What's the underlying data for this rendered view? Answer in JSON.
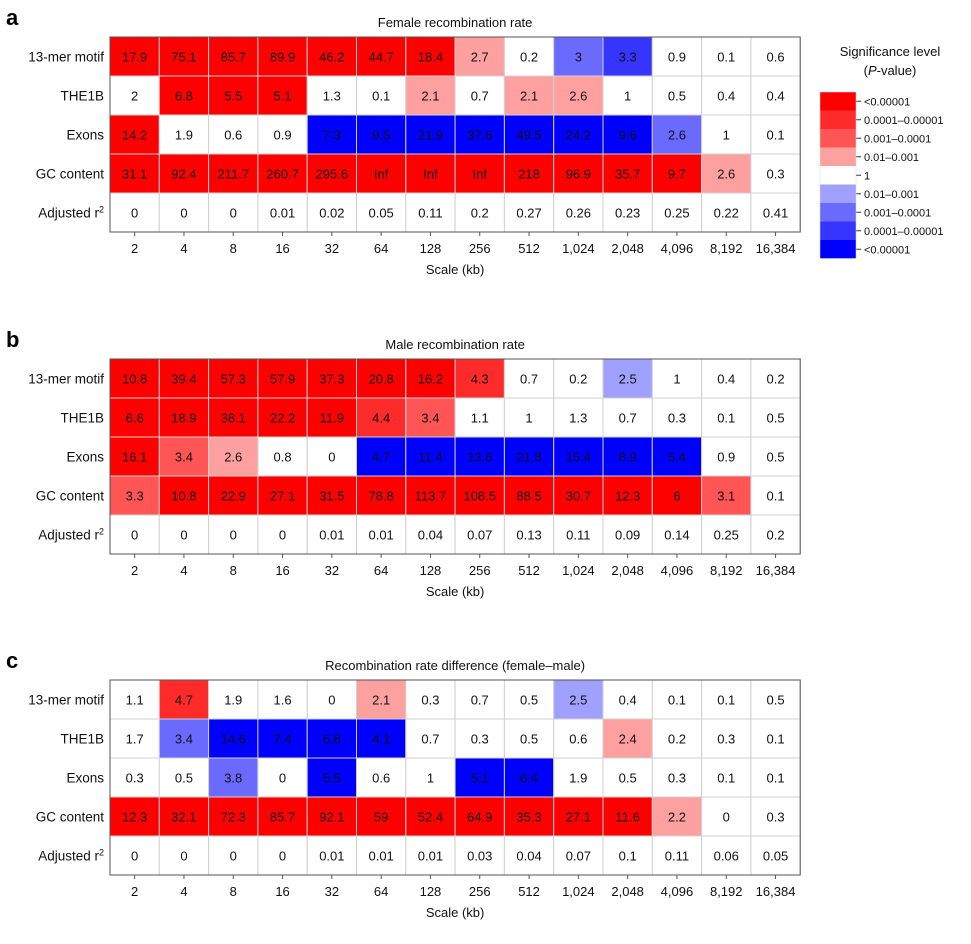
{
  "figure": {
    "legend": {
      "title_line1": "Significance level",
      "title_line2_prefix": "(",
      "title_line2_italic": "P",
      "title_line2_suffix": "-value)",
      "bins": [
        {
          "key": "r5",
          "label": "<0.00001",
          "color": "#ff0000"
        },
        {
          "key": "r4",
          "label": "0.0001–0.00001",
          "color": "#ff2a2a"
        },
        {
          "key": "r3",
          "label": "0.001–0.0001",
          "color": "#ff5555"
        },
        {
          "key": "r2",
          "label": "0.01–0.001",
          "color": "#ffa0a0"
        },
        {
          "key": "w",
          "label": "1",
          "color": "#ffffff"
        },
        {
          "key": "b2",
          "label": "0.01–0.001",
          "color": "#a0a0ff"
        },
        {
          "key": "b3",
          "label": "0.001–0.0001",
          "color": "#6a6aff"
        },
        {
          "key": "b4",
          "label": "0.0001–0.00001",
          "color": "#3535ff"
        },
        {
          "key": "b5",
          "label": "<0.00001",
          "color": "#0000ff"
        }
      ]
    }
  },
  "chart_data": [
    {
      "type": "heatmap",
      "panel": "a",
      "title": "Female recombination rate",
      "xlabel": "Scale (kb)",
      "x": [
        "2",
        "4",
        "8",
        "16",
        "32",
        "64",
        "128",
        "256",
        "512",
        "1,024",
        "2,048",
        "4,096",
        "8,192",
        "16,384"
      ],
      "rows": [
        {
          "label": "13-mer motif",
          "values": [
            "17.9",
            "75.1",
            "85.7",
            "89.9",
            "46.2",
            "44.7",
            "18.4",
            "2.7",
            "0.2",
            "3",
            "3.3",
            "0.9",
            "0.1",
            "0.6"
          ],
          "sig": [
            "r5",
            "r5",
            "r5",
            "r5",
            "r5",
            "r5",
            "r5",
            "r2",
            "w",
            "b3",
            "b4",
            "w",
            "w",
            "w"
          ]
        },
        {
          "label": "THE1B",
          "values": [
            "2",
            "6.8",
            "5.5",
            "5.1",
            "1.3",
            "0.1",
            "2.1",
            "0.7",
            "2.1",
            "2.6",
            "1",
            "0.5",
            "0.4",
            "0.4"
          ],
          "sig": [
            "w",
            "r5",
            "r5",
            "r5",
            "w",
            "w",
            "r2",
            "w",
            "r2",
            "r2",
            "w",
            "w",
            "w",
            "w"
          ]
        },
        {
          "label": "Exons",
          "values": [
            "14.2",
            "1.9",
            "0.6",
            "0.9",
            "7.3",
            "9.5",
            "21.9",
            "37.6",
            "49.5",
            "24.2",
            "9.6",
            "2.6",
            "1",
            "0.1"
          ],
          "sig": [
            "r5",
            "w",
            "w",
            "w",
            "b5",
            "b5",
            "b5",
            "b5",
            "b5",
            "b5",
            "b5",
            "b3",
            "w",
            "w"
          ]
        },
        {
          "label": "GC content",
          "values": [
            "31.1",
            "92.4",
            "211.7",
            "260.7",
            "295.6",
            "Inf",
            "Inf",
            "Inf",
            "218",
            "96.9",
            "35.7",
            "9.7",
            "2.6",
            "0.3"
          ],
          "sig": [
            "r5",
            "r5",
            "r5",
            "r5",
            "r5",
            "r5",
            "r5",
            "r5",
            "r5",
            "r5",
            "r5",
            "r5",
            "r2",
            "w"
          ]
        },
        {
          "label": "Adjusted r",
          "sup": "2",
          "values": [
            "0",
            "0",
            "0",
            "0.01",
            "0.02",
            "0.05",
            "0.11",
            "0.2",
            "0.27",
            "0.26",
            "0.23",
            "0.25",
            "0.22",
            "0.41"
          ],
          "sig": [
            "w",
            "w",
            "w",
            "w",
            "w",
            "w",
            "w",
            "w",
            "w",
            "w",
            "w",
            "w",
            "w",
            "w"
          ]
        }
      ]
    },
    {
      "type": "heatmap",
      "panel": "b",
      "title": "Male recombination rate",
      "xlabel": "Scale (kb)",
      "x": [
        "2",
        "4",
        "8",
        "16",
        "32",
        "64",
        "128",
        "256",
        "512",
        "1,024",
        "2,048",
        "4,096",
        "8,192",
        "16,384"
      ],
      "rows": [
        {
          "label": "13-mer motif",
          "values": [
            "10.8",
            "39.4",
            "57.3",
            "57.9",
            "37.3",
            "20.8",
            "16.2",
            "4.3",
            "0.7",
            "0.2",
            "2.5",
            "1",
            "0.4",
            "0.2"
          ],
          "sig": [
            "r5",
            "r5",
            "r5",
            "r5",
            "r5",
            "r5",
            "r5",
            "r4",
            "w",
            "w",
            "b2",
            "w",
            "w",
            "w"
          ]
        },
        {
          "label": "THE1B",
          "values": [
            "6.6",
            "18.9",
            "38.1",
            "22.2",
            "11.9",
            "4.4",
            "3.4",
            "1.1",
            "1",
            "1.3",
            "0.7",
            "0.3",
            "0.1",
            "0.5"
          ],
          "sig": [
            "r5",
            "r5",
            "r5",
            "r5",
            "r5",
            "r4",
            "r3",
            "w",
            "w",
            "w",
            "w",
            "w",
            "w",
            "w"
          ]
        },
        {
          "label": "Exons",
          "values": [
            "16.1",
            "3.4",
            "2.6",
            "0.8",
            "0",
            "4.7",
            "11.4",
            "13.6",
            "21.8",
            "15.4",
            "8.9",
            "5.4",
            "0.9",
            "0.5"
          ],
          "sig": [
            "r5",
            "r3",
            "r2",
            "w",
            "w",
            "b5",
            "b5",
            "b5",
            "b5",
            "b5",
            "b5",
            "b5",
            "w",
            "w"
          ]
        },
        {
          "label": "GC content",
          "values": [
            "3.3",
            "10.8",
            "22.9",
            "27.1",
            "31.5",
            "78.8",
            "113.7",
            "108.5",
            "88.5",
            "30.7",
            "12.3",
            "6",
            "3.1",
            "0.1"
          ],
          "sig": [
            "r3",
            "r5",
            "r5",
            "r5",
            "r5",
            "r5",
            "r5",
            "r5",
            "r5",
            "r5",
            "r5",
            "r5",
            "r3",
            "w"
          ]
        },
        {
          "label": "Adjusted r",
          "sup": "2",
          "values": [
            "0",
            "0",
            "0",
            "0",
            "0.01",
            "0.01",
            "0.04",
            "0.07",
            "0.13",
            "0.11",
            "0.09",
            "0.14",
            "0.25",
            "0.2"
          ],
          "sig": [
            "w",
            "w",
            "w",
            "w",
            "w",
            "w",
            "w",
            "w",
            "w",
            "w",
            "w",
            "w",
            "w",
            "w"
          ]
        }
      ]
    },
    {
      "type": "heatmap",
      "panel": "c",
      "title": "Recombination rate difference (female–male)",
      "xlabel": "Scale (kb)",
      "x": [
        "2",
        "4",
        "8",
        "16",
        "32",
        "64",
        "128",
        "256",
        "512",
        "1,024",
        "2,048",
        "4,096",
        "8,192",
        "16,384"
      ],
      "rows": [
        {
          "label": "13-mer motif",
          "values": [
            "1.1",
            "4.7",
            "1.9",
            "1.6",
            "0",
            "2.1",
            "0.3",
            "0.7",
            "0.5",
            "2.5",
            "0.4",
            "0.1",
            "0.1",
            "0.5"
          ],
          "sig": [
            "w",
            "r4",
            "w",
            "w",
            "w",
            "r2",
            "w",
            "w",
            "w",
            "b2",
            "w",
            "w",
            "w",
            "w"
          ]
        },
        {
          "label": "THE1B",
          "values": [
            "1.7",
            "3.4",
            "14.6",
            "7.4",
            "6.8",
            "4.1",
            "0.7",
            "0.3",
            "0.5",
            "0.6",
            "2.4",
            "0.2",
            "0.3",
            "0.1"
          ],
          "sig": [
            "w",
            "b3",
            "b5",
            "b5",
            "b5",
            "b5",
            "w",
            "w",
            "w",
            "w",
            "r2",
            "w",
            "w",
            "w"
          ]
        },
        {
          "label": "Exons",
          "values": [
            "0.3",
            "0.5",
            "3.8",
            "0",
            "5.5",
            "0.6",
            "1",
            "5.1",
            "6.4",
            "1.9",
            "0.5",
            "0.3",
            "0.1",
            "0.1"
          ],
          "sig": [
            "w",
            "w",
            "b3",
            "w",
            "b5",
            "w",
            "w",
            "b5",
            "b5",
            "w",
            "w",
            "w",
            "w",
            "w"
          ]
        },
        {
          "label": "GC content",
          "values": [
            "12.3",
            "32.1",
            "72.3",
            "85.7",
            "92.1",
            "59",
            "52.4",
            "64.9",
            "35.3",
            "27.1",
            "11.6",
            "2.2",
            "0",
            "0.3"
          ],
          "sig": [
            "r5",
            "r5",
            "r5",
            "r5",
            "r5",
            "r5",
            "r5",
            "r5",
            "r5",
            "r5",
            "r5",
            "r2",
            "w",
            "w"
          ]
        },
        {
          "label": "Adjusted r",
          "sup": "2",
          "values": [
            "0",
            "0",
            "0",
            "0",
            "0.01",
            "0.01",
            "0.01",
            "0.03",
            "0.04",
            "0.07",
            "0.1",
            "0.11",
            "0.06",
            "0.05"
          ],
          "sig": [
            "w",
            "w",
            "w",
            "w",
            "w",
            "w",
            "w",
            "w",
            "w",
            "w",
            "w",
            "w",
            "w",
            "w"
          ]
        }
      ]
    }
  ]
}
